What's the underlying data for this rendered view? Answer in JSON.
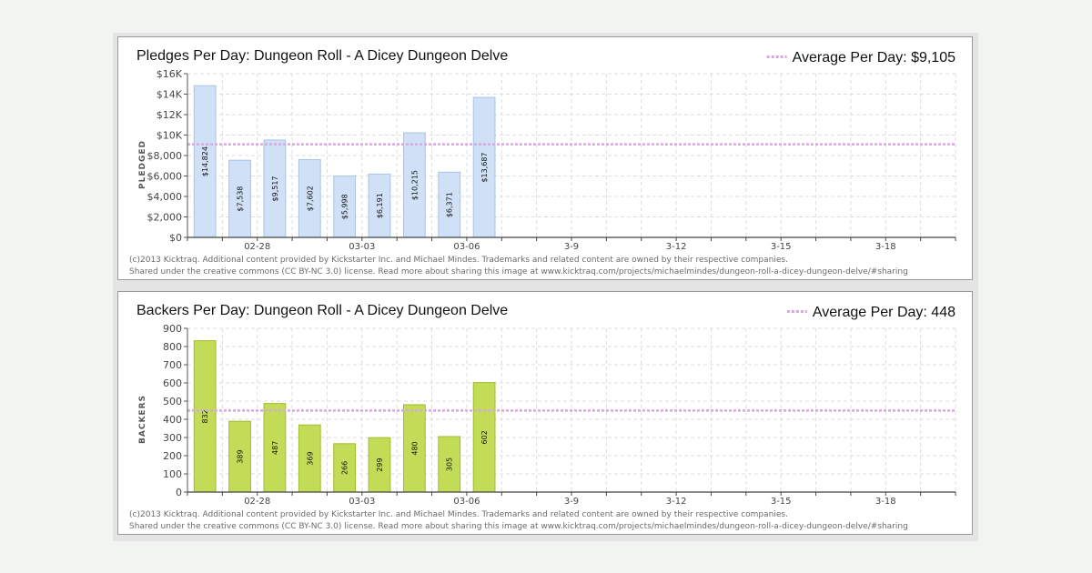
{
  "footer": {
    "line1": "(c)2013 Kicktraq. Additional content provided by Kickstarter Inc. and Michael Mindes. Trademarks and related content are owned by their respective companies.",
    "line2": "Shared under the creative commons (CC BY-NC 3.0) license. Read more about sharing this image at www.kicktraq.com/projects/michaelmindes/dungeon-roll-a-dicey-dungeon-delve/#sharing"
  },
  "colors": {
    "pledge_bar": "#cfe0f7",
    "pledge_bar_stroke": "#a9c4e6",
    "backer_bar": "#c3dc57",
    "backer_bar_stroke": "#9fbd2e",
    "average_line": "#d7a8dc",
    "grid": "#dedede"
  },
  "chart_data": [
    {
      "type": "bar",
      "title": "Pledges Per Day: Dungeon Roll - A Dicey Dungeon Delve",
      "ylabel": "PLEDGED",
      "xlabel": "",
      "average_label": "Average Per Day:",
      "average_display": "$9,105",
      "average": 9105,
      "ylim": [
        0,
        16000
      ],
      "yticks": [
        0,
        2000,
        4000,
        6000,
        8000,
        10000,
        12000,
        14000,
        16000
      ],
      "ytick_labels": [
        "$0",
        "$2,000",
        "$4,000",
        "$6,000",
        "$8,000",
        "$10K",
        "$12K",
        "$14K",
        "$16K"
      ],
      "num_slots": 22,
      "values": [
        14824,
        7538,
        9517,
        7602,
        5998,
        6191,
        10215,
        6371,
        13687
      ],
      "value_labels": [
        "$14,824",
        "$7,538",
        "$9,517",
        "$7,602",
        "$5,998",
        "$6,191",
        "$10,215",
        "$6,371",
        "$13,687"
      ],
      "xtick_labels": [
        {
          "slot": 2,
          "label": "02-28"
        },
        {
          "slot": 5,
          "label": "03-03"
        },
        {
          "slot": 8,
          "label": "03-06"
        },
        {
          "slot": 11,
          "label": "3-9"
        },
        {
          "slot": 14,
          "label": "3-12"
        },
        {
          "slot": 17,
          "label": "3-15"
        },
        {
          "slot": 20,
          "label": "3-18"
        }
      ],
      "grid": true,
      "legend": "top-right"
    },
    {
      "type": "bar",
      "title": "Backers Per Day: Dungeon Roll - A Dicey Dungeon Delve",
      "ylabel": "BACKERS",
      "xlabel": "",
      "average_label": "Average Per Day:",
      "average_display": "448",
      "average": 448,
      "ylim": [
        0,
        900
      ],
      "yticks": [
        0,
        100,
        200,
        300,
        400,
        500,
        600,
        700,
        800,
        900
      ],
      "ytick_labels": [
        "0",
        "100",
        "200",
        "300",
        "400",
        "500",
        "600",
        "700",
        "800",
        "900"
      ],
      "num_slots": 22,
      "values": [
        832,
        389,
        487,
        369,
        266,
        299,
        480,
        305,
        602
      ],
      "value_labels": [
        "832",
        "389",
        "487",
        "369",
        "266",
        "299",
        "480",
        "305",
        "602"
      ],
      "xtick_labels": [
        {
          "slot": 2,
          "label": "02-28"
        },
        {
          "slot": 5,
          "label": "03-03"
        },
        {
          "slot": 8,
          "label": "03-06"
        },
        {
          "slot": 11,
          "label": "3-9"
        },
        {
          "slot": 14,
          "label": "3-12"
        },
        {
          "slot": 17,
          "label": "3-15"
        },
        {
          "slot": 20,
          "label": "3-18"
        }
      ],
      "grid": true,
      "legend": "top-right"
    }
  ]
}
